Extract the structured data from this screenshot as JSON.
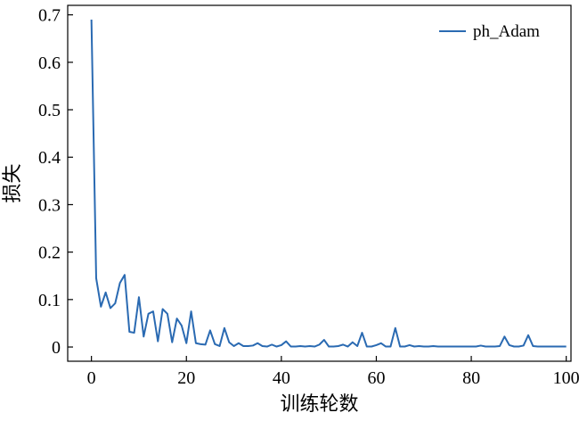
{
  "chart_data": {
    "type": "line",
    "title": "",
    "xlabel": "训练轮数",
    "ylabel": "损失",
    "xlim": [
      -5,
      101
    ],
    "ylim": [
      -0.03,
      0.72
    ],
    "xticks": [
      0,
      20,
      40,
      60,
      80,
      100
    ],
    "xtick_labels": [
      "0",
      "20",
      "40",
      "60",
      "80",
      "100"
    ],
    "yticks": [
      0,
      0.1,
      0.2,
      0.3,
      0.4,
      0.5,
      0.6,
      0.7
    ],
    "ytick_labels": [
      "0",
      "0.1",
      "0.2",
      "0.3",
      "0.4",
      "0.5",
      "0.6",
      "0.7"
    ],
    "grid": false,
    "legend_position": "top-right",
    "series": [
      {
        "name": "ph_Adam",
        "color": "#2a6ab2",
        "x": [
          0,
          1,
          2,
          3,
          4,
          5,
          6,
          7,
          8,
          9,
          10,
          11,
          12,
          13,
          14,
          15,
          16,
          17,
          18,
          19,
          20,
          21,
          22,
          23,
          24,
          25,
          26,
          27,
          28,
          29,
          30,
          31,
          32,
          33,
          34,
          35,
          36,
          37,
          38,
          39,
          40,
          41,
          42,
          43,
          44,
          45,
          46,
          47,
          48,
          49,
          50,
          51,
          52,
          53,
          54,
          55,
          56,
          57,
          58,
          59,
          60,
          61,
          62,
          63,
          64,
          65,
          66,
          67,
          68,
          69,
          70,
          71,
          72,
          73,
          74,
          75,
          76,
          77,
          78,
          79,
          80,
          81,
          82,
          83,
          84,
          85,
          86,
          87,
          88,
          89,
          90,
          91,
          92,
          93,
          94,
          95,
          96,
          97,
          98,
          99,
          100
        ],
        "values": [
          0.69,
          0.145,
          0.085,
          0.115,
          0.082,
          0.092,
          0.135,
          0.152,
          0.032,
          0.03,
          0.105,
          0.022,
          0.07,
          0.075,
          0.012,
          0.08,
          0.07,
          0.01,
          0.06,
          0.045,
          0.008,
          0.075,
          0.008,
          0.006,
          0.005,
          0.035,
          0.006,
          0.002,
          0.04,
          0.01,
          0.002,
          0.008,
          0.002,
          0.002,
          0.003,
          0.008,
          0.002,
          0.001,
          0.005,
          0.001,
          0.004,
          0.012,
          0.001,
          0.001,
          0.002,
          0.001,
          0.002,
          0.001,
          0.005,
          0.015,
          0.001,
          0.001,
          0.002,
          0.005,
          0.001,
          0.01,
          0.002,
          0.03,
          0.001,
          0.001,
          0.004,
          0.008,
          0.001,
          0.001,
          0.04,
          0.001,
          0.001,
          0.004,
          0.001,
          0.002,
          0.001,
          0.001,
          0.002,
          0.001,
          0.001,
          0.001,
          0.001,
          0.001,
          0.001,
          0.001,
          0.001,
          0.001,
          0.003,
          0.001,
          0.001,
          0.001,
          0.002,
          0.022,
          0.004,
          0.001,
          0.001,
          0.003,
          0.025,
          0.002,
          0.001,
          0.001,
          0.001,
          0.001,
          0.001,
          0.001,
          0.001
        ]
      }
    ]
  }
}
